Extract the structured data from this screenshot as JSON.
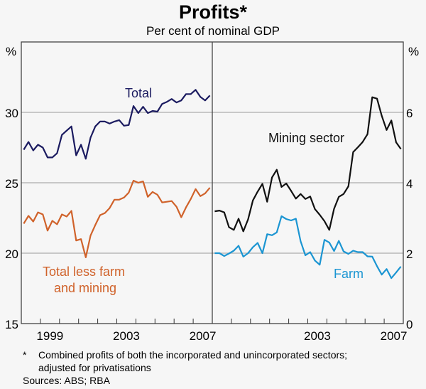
{
  "title": "Profits*",
  "subtitle": "Per cent of nominal GDP",
  "footnote_marker": "*",
  "footnote": "Combined profits of both the incorporated and unincorporated sectors;",
  "footnote_line2": "adjusted for privatisations",
  "sources": "Sources: ABS; RBA",
  "colors": {
    "background": "#f6f6f6",
    "total": "#1b1b60",
    "total_less": "#d0622a",
    "mining": "#111111",
    "farm": "#1b95d2",
    "grid": "#b8b8b8"
  },
  "chart_data": [
    {
      "type": "line",
      "panel": "left",
      "title": "",
      "ylabel": "%",
      "ylim": [
        15,
        35
      ],
      "yticks": [
        15,
        20,
        25,
        30
      ],
      "x_range": [
        1998,
        2008
      ],
      "x_tick_labels": [
        "1999",
        "2003",
        "2007"
      ],
      "frequency": "quarterly",
      "x_start": "1998 Q1",
      "grid": true,
      "series": [
        {
          "name": "Total",
          "label": "Total",
          "values": [
            27.35,
            27.9,
            27.3,
            27.7,
            27.5,
            26.8,
            26.8,
            27.1,
            28.4,
            28.7,
            29.0,
            26.95,
            27.7,
            26.7,
            28.2,
            29.0,
            29.35,
            29.35,
            29.2,
            29.35,
            29.45,
            29.05,
            29.1,
            30.45,
            29.95,
            30.4,
            29.95,
            30.1,
            30.05,
            30.6,
            30.75,
            30.95,
            30.7,
            30.85,
            31.3,
            31.3,
            31.6,
            31.1,
            30.85,
            31.2
          ]
        },
        {
          "name": "Total less farm and mining",
          "label_line1": "Total less farm",
          "label_line2": "and mining",
          "values": [
            22.1,
            22.65,
            22.25,
            22.9,
            22.75,
            21.6,
            22.3,
            22.05,
            22.75,
            22.6,
            23.0,
            20.9,
            21.0,
            19.7,
            21.25,
            22.0,
            22.7,
            22.85,
            23.2,
            23.8,
            23.8,
            23.95,
            24.3,
            25.15,
            25.0,
            25.1,
            24.0,
            24.35,
            24.15,
            23.6,
            23.65,
            23.7,
            23.3,
            22.55,
            23.25,
            23.85,
            24.55,
            24.05,
            24.25,
            24.65
          ]
        }
      ]
    },
    {
      "type": "line",
      "panel": "right",
      "title": "",
      "ylabel": "%",
      "ylim": [
        0,
        8
      ],
      "yticks": [
        0,
        2,
        4,
        6
      ],
      "x_range": [
        1998,
        2008
      ],
      "x_tick_labels": [
        "2003",
        "2007"
      ],
      "frequency": "quarterly",
      "x_start": "1998 Q1",
      "grid": true,
      "series": [
        {
          "name": "Mining sector",
          "label": "Mining sector",
          "values": [
            3.19,
            3.21,
            3.16,
            2.74,
            2.66,
            2.98,
            2.62,
            2.96,
            3.5,
            3.75,
            3.97,
            3.46,
            4.15,
            4.37,
            3.88,
            3.98,
            3.77,
            3.55,
            3.68,
            3.54,
            3.61,
            3.25,
            3.09,
            2.91,
            2.66,
            3.26,
            3.6,
            3.68,
            3.9,
            4.87,
            5.01,
            5.16,
            5.38,
            6.43,
            6.39,
            5.9,
            5.5,
            5.77,
            5.15,
            4.96
          ]
        },
        {
          "name": "Farm",
          "label": "Farm",
          "values": [
            2.0,
            2.0,
            1.92,
            1.99,
            2.07,
            2.21,
            1.9,
            2.0,
            2.17,
            2.29,
            2.0,
            2.54,
            2.51,
            2.59,
            3.05,
            2.97,
            2.93,
            2.98,
            2.34,
            1.94,
            2.03,
            1.79,
            1.67,
            2.38,
            2.3,
            2.06,
            2.35,
            2.05,
            1.98,
            2.07,
            2.03,
            2.03,
            1.91,
            1.9,
            1.63,
            1.39,
            1.55,
            1.29,
            1.45,
            1.62
          ]
        }
      ]
    }
  ]
}
